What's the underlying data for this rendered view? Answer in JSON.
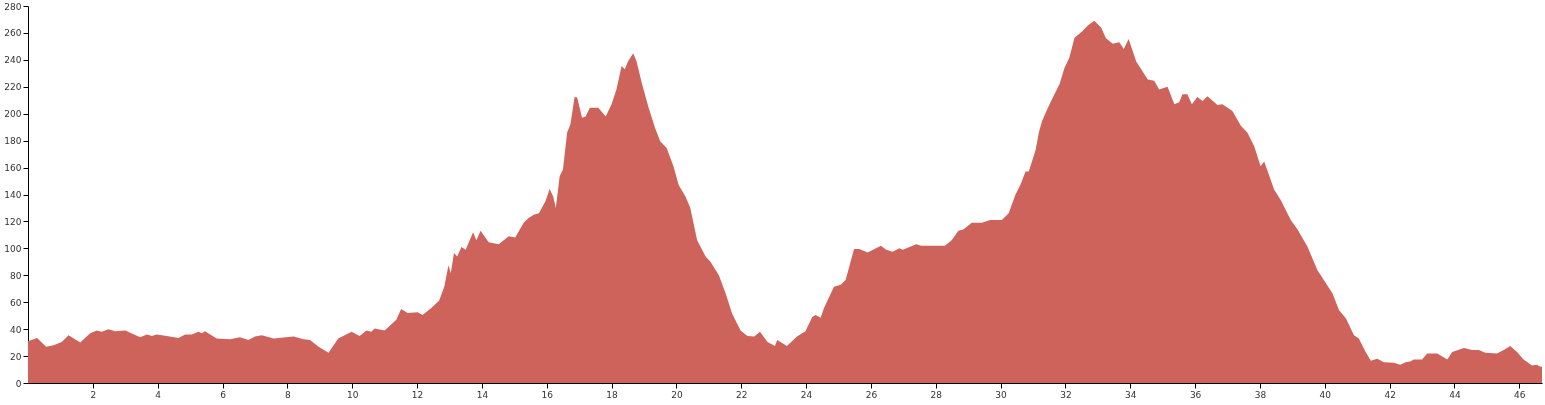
{
  "chart_data": {
    "type": "area",
    "x": [
      0,
      0.28,
      0.56,
      0.79,
      1.04,
      1.25,
      1.61,
      1.92,
      2.12,
      2.28,
      2.48,
      2.69,
      3.0,
      3.46,
      3.67,
      3.82,
      3.97,
      4.28,
      4.64,
      4.85,
      5.05,
      5.26,
      5.36,
      5.46,
      5.82,
      6.23,
      6.54,
      6.8,
      7.0,
      7.21,
      7.58,
      8.19,
      8.5,
      8.7,
      8.96,
      9.27,
      9.57,
      9.98,
      10.23,
      10.44,
      10.59,
      10.69,
      11.0,
      11.36,
      11.51,
      11.71,
      12.02,
      12.17,
      12.43,
      12.68,
      12.84,
      12.97,
      13.04,
      13.14,
      13.24,
      13.37,
      13.5,
      13.73,
      13.83,
      13.96,
      14.21,
      14.52,
      14.83,
      15.03,
      15.29,
      15.44,
      15.6,
      15.76,
      15.96,
      16.09,
      16.2,
      16.28,
      16.4,
      16.5,
      16.63,
      16.73,
      16.86,
      16.94,
      17.09,
      17.2,
      17.33,
      17.59,
      17.82,
      18.0,
      18.15,
      18.31,
      18.41,
      18.51,
      18.67,
      18.77,
      18.93,
      19.13,
      19.34,
      19.5,
      19.7,
      19.91,
      20.07,
      20.28,
      20.43,
      20.64,
      20.9,
      21.05,
      21.31,
      21.52,
      21.72,
      21.98,
      22.19,
      22.4,
      22.58,
      22.81,
      23.04,
      23.11,
      23.41,
      23.72,
      23.98,
      24.19,
      24.29,
      24.45,
      24.55,
      24.86,
      25.07,
      25.22,
      25.36,
      25.48,
      25.64,
      25.9,
      26.31,
      26.47,
      26.67,
      26.88,
      26.98,
      27.4,
      27.55,
      27.92,
      28.28,
      28.49,
      28.7,
      28.85,
      29.11,
      29.42,
      29.68,
      30.04,
      30.25,
      30.46,
      30.61,
      30.77,
      30.87,
      31.08,
      31.18,
      31.28,
      31.46,
      31.66,
      31.82,
      31.97,
      32.12,
      32.28,
      32.53,
      32.69,
      32.89,
      33.1,
      33.25,
      33.46,
      33.66,
      33.8,
      33.95,
      34.18,
      34.54,
      34.74,
      34.89,
      35.15,
      35.36,
      35.51,
      35.61,
      35.76,
      35.9,
      36.07,
      36.23,
      36.38,
      36.69,
      36.84,
      37.15,
      37.41,
      37.61,
      37.82,
      38.02,
      38.13,
      38.44,
      38.64,
      38.95,
      39.16,
      39.47,
      39.77,
      40.24,
      40.44,
      40.65,
      40.9,
      41.05,
      41.26,
      41.42,
      41.62,
      41.82,
      42.13,
      42.33,
      42.49,
      42.64,
      42.74,
      43.0,
      43.16,
      43.47,
      43.78,
      43.93,
      44.29,
      44.55,
      44.75,
      44.95,
      45.31,
      45.52,
      45.72,
      45.93,
      46.13,
      46.39,
      46.54,
      46.65,
      46.7
    ],
    "series": [
      {
        "color": "#cd635a",
        "values": [
          31,
          33.5,
          27,
          28,
          30.5,
          35.5,
          30,
          37,
          39,
          38,
          40,
          38.5,
          39,
          34,
          36,
          35,
          36,
          35,
          33.5,
          36,
          36,
          38,
          37,
          38.5,
          33,
          32.5,
          34,
          32,
          34.5,
          35.5,
          33,
          34.5,
          32.5,
          32,
          27,
          22.5,
          33,
          38,
          35,
          39,
          38,
          40.5,
          39,
          47,
          55,
          52,
          52.5,
          50.5,
          55.5,
          61,
          71.5,
          87.5,
          81.5,
          96.5,
          94,
          101,
          99,
          112,
          106,
          113,
          104.5,
          103,
          109,
          108,
          119,
          122.5,
          125,
          126,
          135,
          144,
          138.5,
          130,
          153.5,
          158.5,
          186,
          192,
          212.5,
          212,
          197,
          198,
          204.5,
          204.5,
          198,
          207,
          218,
          235.5,
          233,
          239,
          245,
          239,
          223,
          205.5,
          189.5,
          179.5,
          174.5,
          161,
          147,
          138.5,
          130,
          106,
          94,
          90,
          80,
          66.5,
          51.5,
          39,
          35,
          34.5,
          38,
          30.5,
          27.5,
          32,
          27.5,
          34.5,
          38.5,
          49,
          50.5,
          48.5,
          55.5,
          71.5,
          73,
          76.5,
          89,
          99.5,
          99.5,
          97,
          102,
          99,
          97.5,
          100,
          99,
          103,
          102,
          102,
          102,
          106,
          113,
          114,
          119,
          119,
          121,
          121,
          126,
          140,
          147,
          157,
          157,
          173,
          186,
          194.5,
          204.5,
          214.5,
          222,
          234,
          241.5,
          256.5,
          261.5,
          265.5,
          269,
          264,
          256,
          252,
          253,
          248,
          255.5,
          239,
          225.5,
          224.5,
          218,
          220,
          207,
          208.5,
          214.5,
          214.5,
          207,
          212.5,
          209.5,
          213,
          206.5,
          207,
          202,
          191,
          186,
          176,
          161,
          164.5,
          143.5,
          136,
          121,
          114,
          101,
          84,
          66.5,
          54,
          48,
          35.5,
          33,
          23,
          16.5,
          18,
          15.5,
          15,
          13.5,
          15.5,
          16,
          17.5,
          17.5,
          22,
          22,
          17.5,
          23,
          26,
          24.5,
          24.5,
          22.5,
          22,
          24.5,
          27.5,
          23,
          17.5,
          13,
          13.5,
          12,
          12
        ]
      }
    ],
    "xlim": [
      0,
      46.7
    ],
    "ylim": [
      0,
      280
    ],
    "xticks": [
      2,
      4,
      6,
      8,
      10,
      12,
      14,
      16,
      18,
      20,
      22,
      24,
      26,
      28,
      30,
      32,
      34,
      36,
      38,
      40,
      42,
      44,
      46
    ],
    "yticks": [
      0,
      20,
      40,
      60,
      80,
      100,
      120,
      140,
      160,
      180,
      200,
      220,
      240,
      260,
      280
    ],
    "grid": false
  }
}
